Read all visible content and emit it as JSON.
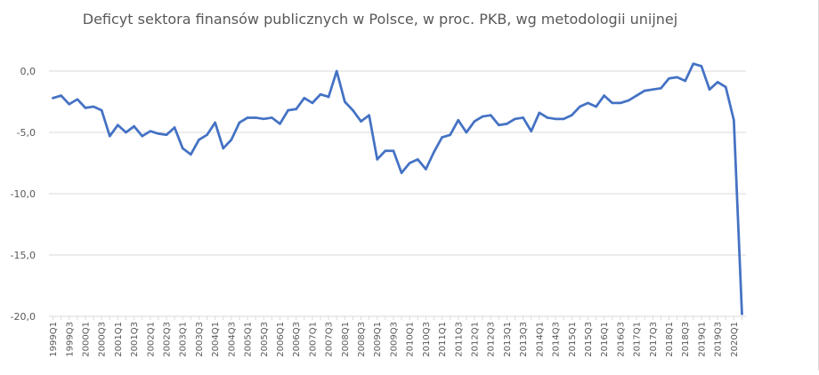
{
  "chart_data": {
    "type": "line",
    "title": "Deficyt sektora finansów publicznych w Polsce, w proc. PKB, wg metodologii unijnej",
    "xlabel": "",
    "ylabel": "",
    "ylim": [
      -20,
      0
    ],
    "yticks": [
      0,
      -5,
      -10,
      -15,
      -20
    ],
    "ytick_labels": [
      "0,0",
      "-5,0",
      "-10,0",
      "-15,0",
      "-20,0"
    ],
    "grid": true,
    "legend": "none",
    "series_color": "#4472c4",
    "x": [
      "1999Q1",
      "1999Q2",
      "1999Q3",
      "1999Q4",
      "2000Q1",
      "2000Q2",
      "2000Q3",
      "2000Q4",
      "2001Q1",
      "2001Q2",
      "2001Q3",
      "2001Q4",
      "2002Q1",
      "2002Q2",
      "2002Q3",
      "2002Q4",
      "2003Q1",
      "2003Q2",
      "2003Q3",
      "2003Q4",
      "2004Q1",
      "2004Q2",
      "2004Q3",
      "2004Q4",
      "2005Q1",
      "2005Q2",
      "2005Q3",
      "2005Q4",
      "2006Q1",
      "2006Q2",
      "2006Q3",
      "2006Q4",
      "2007Q1",
      "2007Q2",
      "2007Q3",
      "2007Q4",
      "2008Q1",
      "2008Q2",
      "2008Q3",
      "2008Q4",
      "2009Q1",
      "2009Q2",
      "2009Q3",
      "2009Q4",
      "2010Q1",
      "2010Q2",
      "2010Q3",
      "2010Q4",
      "2011Q1",
      "2011Q2",
      "2011Q3",
      "2011Q4",
      "2012Q1",
      "2012Q2",
      "2012Q3",
      "2012Q4",
      "2013Q1",
      "2013Q2",
      "2013Q3",
      "2013Q4",
      "2014Q1",
      "2014Q2",
      "2014Q3",
      "2014Q4",
      "2015Q1",
      "2015Q2",
      "2015Q3",
      "2015Q4",
      "2016Q1",
      "2016Q2",
      "2016Q3",
      "2016Q4",
      "2017Q1",
      "2017Q2",
      "2017Q3",
      "2017Q4",
      "2018Q1",
      "2018Q2",
      "2018Q3",
      "2018Q4",
      "2019Q1",
      "2019Q2",
      "2019Q3",
      "2019Q4",
      "2020Q1",
      "2020Q2"
    ],
    "x_tick_labels": [
      "1999Q1",
      "1999Q3",
      "2000Q1",
      "2000Q3",
      "2001Q1",
      "2001Q3",
      "2002Q1",
      "2002Q3",
      "2003Q1",
      "2003Q3",
      "2004Q1",
      "2004Q3",
      "2005Q1",
      "2005Q3",
      "2006Q1",
      "2006Q3",
      "2007Q1",
      "2007Q3",
      "2008Q1",
      "2008Q3",
      "2009Q1",
      "2009Q3",
      "2010Q1",
      "2010Q3",
      "2011Q1",
      "2011Q3",
      "2012Q1",
      "2012Q3",
      "2013Q1",
      "2013Q3",
      "2014Q1",
      "2014Q3",
      "2015Q1",
      "2015Q3",
      "2016Q1",
      "2016Q3",
      "2017Q1",
      "2017Q3",
      "2018Q1",
      "2018Q3",
      "2019Q1",
      "2019Q3",
      "2020Q1"
    ],
    "series": [
      {
        "values": [
          -2.2,
          -2.0,
          -2.7,
          -2.3,
          -3.0,
          -2.9,
          -3.2,
          -5.3,
          -4.4,
          -5.0,
          -4.5,
          -5.3,
          -4.9,
          -5.1,
          -5.2,
          -4.6,
          -6.3,
          -6.8,
          -5.6,
          -5.2,
          -4.2,
          -6.3,
          -5.6,
          -4.2,
          -3.8,
          -3.8,
          -3.9,
          -3.8,
          -4.3,
          -3.2,
          -3.1,
          -2.2,
          -2.6,
          -1.9,
          -2.1,
          0.0,
          -2.5,
          -3.2,
          -4.1,
          -3.6,
          -7.2,
          -6.5,
          -6.5,
          -8.3,
          -7.5,
          -7.2,
          -8.0,
          -6.6,
          -5.4,
          -5.2,
          -4.0,
          -5.0,
          -4.1,
          -3.7,
          -3.6,
          -4.4,
          -4.3,
          -3.9,
          -3.8,
          -4.9,
          -3.4,
          -3.8,
          -3.9,
          -3.9,
          -3.6,
          -2.9,
          -2.6,
          -2.9,
          -2.0,
          -2.6,
          -2.6,
          -2.4,
          -2.0,
          -1.6,
          -1.5,
          -1.4,
          -0.6,
          -0.5,
          -0.8,
          0.6,
          0.4,
          -1.5,
          -0.9,
          -1.3,
          -4.0,
          -19.8
        ]
      }
    ]
  }
}
